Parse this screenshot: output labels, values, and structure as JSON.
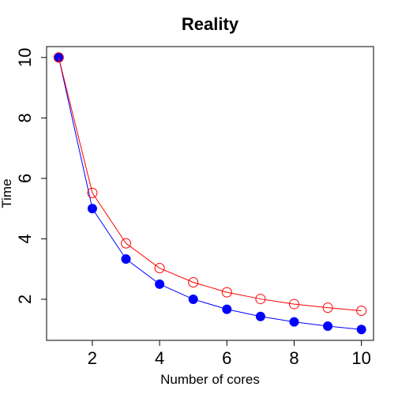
{
  "chart_data": {
    "type": "line",
    "title": "Reality",
    "xlabel": "Number of cores",
    "ylabel": "Time",
    "xlim": [
      0.64,
      10.36
    ],
    "ylim": [
      0.64,
      10.36
    ],
    "x_ticks": [
      2,
      4,
      6,
      8,
      10
    ],
    "y_ticks": [
      2,
      4,
      6,
      8,
      10
    ],
    "grid": false,
    "series": [
      {
        "color": "#0000ff",
        "marker": "filled-circle",
        "x": [
          1,
          2,
          3,
          4,
          5,
          6,
          7,
          8,
          9,
          10
        ],
        "y": [
          10,
          5,
          3.33,
          2.5,
          2,
          1.67,
          1.43,
          1.25,
          1.11,
          1
        ]
      },
      {
        "color": "#ff0000",
        "marker": "open-circle",
        "x": [
          1,
          2,
          3,
          4,
          5,
          6,
          7,
          8,
          9,
          10
        ],
        "y": [
          10,
          5.52,
          3.85,
          3.03,
          2.56,
          2.23,
          2.01,
          1.84,
          1.72,
          1.62
        ]
      }
    ]
  }
}
